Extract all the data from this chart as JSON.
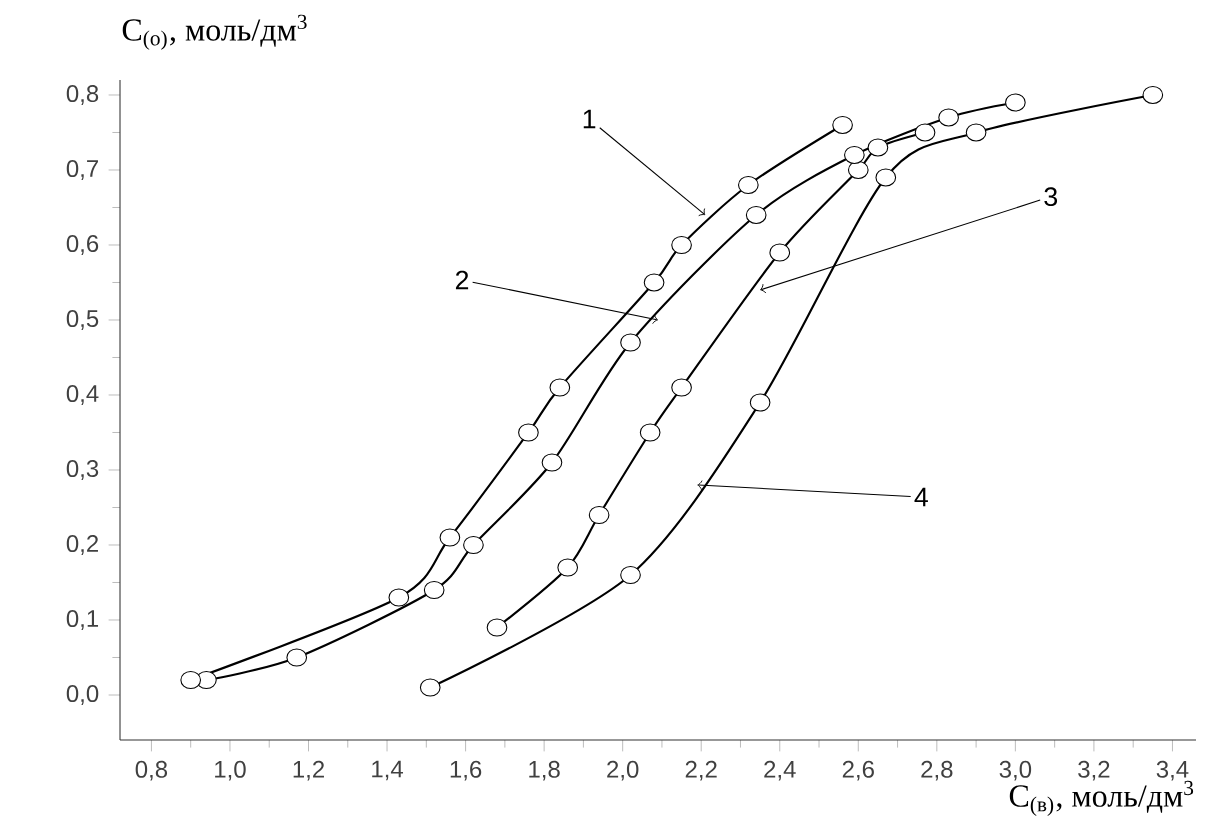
{
  "chart_data": {
    "type": "line",
    "xlabel": "C$_{(в)}$, моль/дм$^{3}$",
    "ylabel": "C$_{(о)}$, моль/дм$^{3}$",
    "xlim": [
      0.72,
      3.46
    ],
    "ylim": [
      -0.06,
      0.82
    ],
    "xticks": [
      {
        "value": 0.8,
        "label": "0,8"
      },
      {
        "value": 1.0,
        "label": "1,0"
      },
      {
        "value": 1.2,
        "label": "1,2"
      },
      {
        "value": 1.4,
        "label": "1,4"
      },
      {
        "value": 1.6,
        "label": "1,6"
      },
      {
        "value": 1.8,
        "label": "1,8"
      },
      {
        "value": 2.0,
        "label": "2,0"
      },
      {
        "value": 2.2,
        "label": "2,2"
      },
      {
        "value": 2.4,
        "label": "2,4"
      },
      {
        "value": 2.6,
        "label": "2,6"
      },
      {
        "value": 2.8,
        "label": "2,8"
      },
      {
        "value": 3.0,
        "label": "3,0"
      },
      {
        "value": 3.2,
        "label": "3,2"
      },
      {
        "value": 3.4,
        "label": "3,4"
      }
    ],
    "yticks": [
      {
        "value": 0.0,
        "label": "0,0"
      },
      {
        "value": 0.1,
        "label": "0,1"
      },
      {
        "value": 0.2,
        "label": "0,2"
      },
      {
        "value": 0.3,
        "label": "0,3"
      },
      {
        "value": 0.4,
        "label": "0,4"
      },
      {
        "value": 0.5,
        "label": "0,5"
      },
      {
        "value": 0.6,
        "label": "0,6"
      },
      {
        "value": 0.7,
        "label": "0,7"
      },
      {
        "value": 0.8,
        "label": "0,8"
      }
    ],
    "marker": "circle",
    "series": [
      {
        "color": "#000000",
        "x": [
          0.9,
          1.43,
          1.56,
          1.76,
          1.84,
          2.08,
          2.15,
          2.32,
          2.56
        ],
        "values": [
          0.02,
          0.13,
          0.21,
          0.35,
          0.41,
          0.55,
          0.6,
          0.68,
          0.76
        ]
      },
      {
        "color": "#000000",
        "x": [
          0.94,
          1.17,
          1.52,
          1.62,
          1.82,
          2.02,
          2.34,
          2.59,
          2.83,
          3.0
        ],
        "values": [
          0.02,
          0.05,
          0.14,
          0.2,
          0.31,
          0.47,
          0.64,
          0.72,
          0.77,
          0.79
        ]
      },
      {
        "color": "#000000",
        "x": [
          1.68,
          1.86,
          1.94,
          2.07,
          2.15,
          2.4,
          2.6,
          2.65,
          2.77
        ],
        "values": [
          0.09,
          0.17,
          0.24,
          0.35,
          0.41,
          0.59,
          0.7,
          0.73,
          0.75
        ]
      },
      {
        "color": "#000000",
        "x": [
          1.51,
          2.02,
          2.35,
          2.67,
          2.9,
          3.35
        ],
        "values": [
          0.01,
          0.16,
          0.39,
          0.69,
          0.75,
          0.8
        ]
      }
    ],
    "annotations": [
      {
        "text": "1",
        "x": 2.21,
        "y": 0.64
      },
      {
        "text": "2",
        "x": 2.09,
        "y": 0.5
      },
      {
        "text": "3",
        "x": 2.35,
        "y": 0.54
      },
      {
        "text": "4",
        "x": 2.19,
        "y": 0.28
      }
    ]
  }
}
